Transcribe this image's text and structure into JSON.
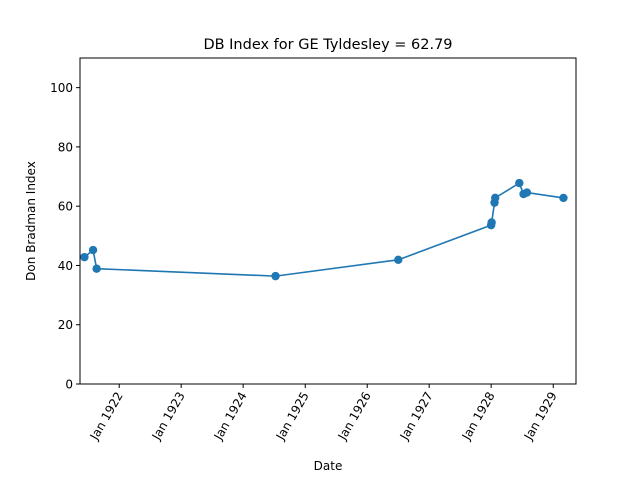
{
  "chart_data": {
    "type": "line",
    "title": "DB Index for GE Tyldesley = 62.79",
    "xlabel": "Date",
    "ylabel": "Don Bradman Index",
    "xlim": [
      "1921-05-15",
      "1929-05-15"
    ],
    "ylim": [
      0,
      110
    ],
    "yticks": [
      0,
      20,
      40,
      60,
      80,
      100
    ],
    "xticks": [
      {
        "date": "1922-01-01",
        "label": "Jan 1922"
      },
      {
        "date": "1923-01-01",
        "label": "Jan 1923"
      },
      {
        "date": "1924-01-01",
        "label": "Jan 1924"
      },
      {
        "date": "1925-01-01",
        "label": "Jan 1925"
      },
      {
        "date": "1926-01-01",
        "label": "Jan 1926"
      },
      {
        "date": "1927-01-01",
        "label": "Jan 1927"
      },
      {
        "date": "1928-01-01",
        "label": "Jan 1928"
      },
      {
        "date": "1929-01-01",
        "label": "Jan 1929"
      }
    ],
    "grid": false,
    "color": "#1f77b4",
    "series": [
      {
        "points": [
          {
            "x": "1921-06-10",
            "y": 42.8
          },
          {
            "x": "1921-07-31",
            "y": 45.2
          },
          {
            "x": "1921-08-21",
            "y": 38.9
          },
          {
            "x": "1924-07-10",
            "y": 36.4
          },
          {
            "x": "1926-07-03",
            "y": 41.9
          },
          {
            "x": "1928-01-01",
            "y": 53.6
          },
          {
            "x": "1928-01-04",
            "y": 54.5
          },
          {
            "x": "1928-01-21",
            "y": 61.2
          },
          {
            "x": "1928-01-25",
            "y": 62.8
          },
          {
            "x": "1928-06-15",
            "y": 67.8
          },
          {
            "x": "1928-07-10",
            "y": 64.1
          },
          {
            "x": "1928-07-30",
            "y": 64.6
          },
          {
            "x": "1929-03-02",
            "y": 62.79
          }
        ]
      }
    ]
  }
}
